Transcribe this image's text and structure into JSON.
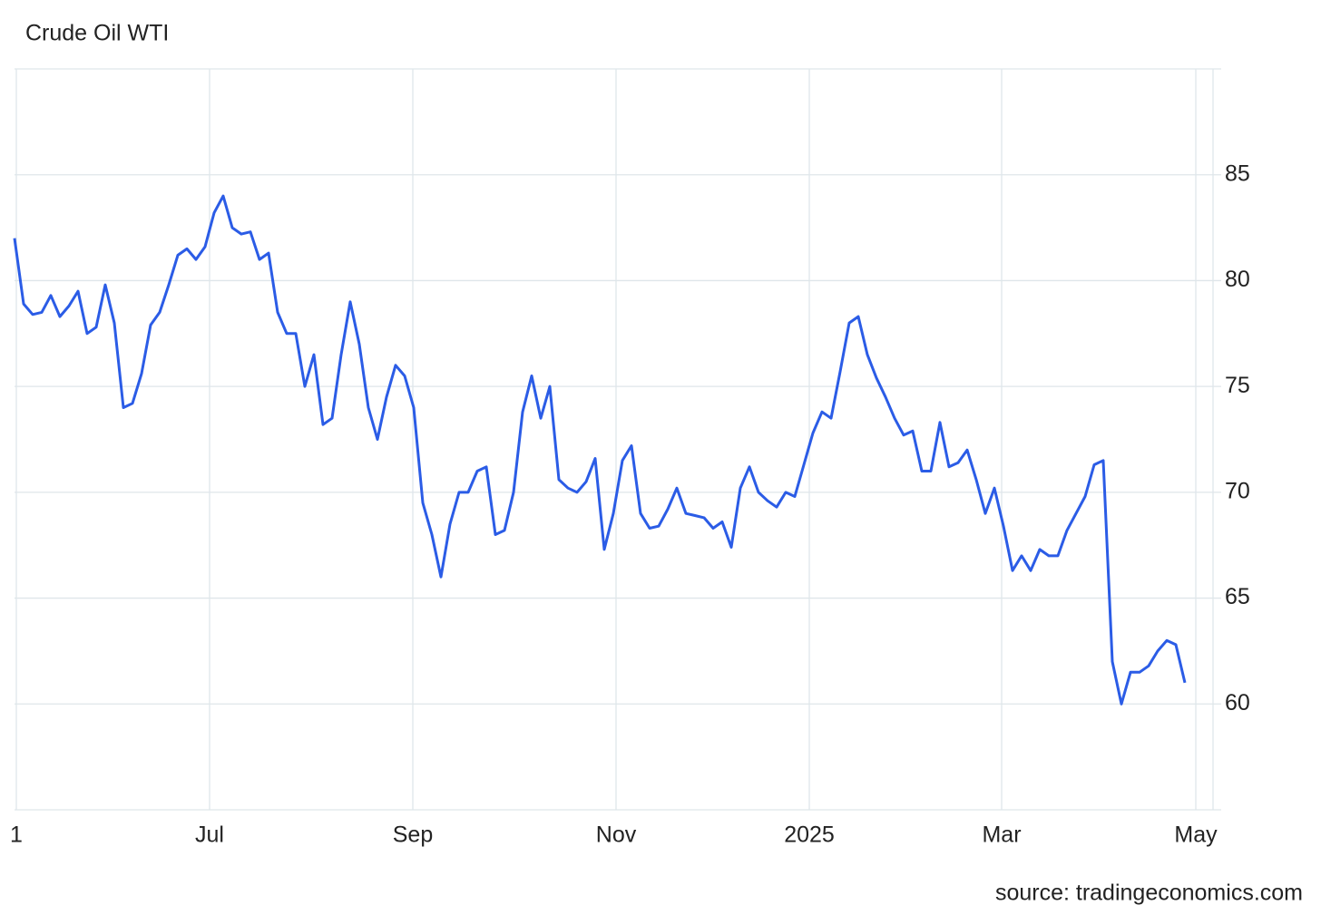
{
  "chart_data": {
    "type": "line",
    "title": "Crude Oil WTI",
    "source": "source: tradingeconomics.com",
    "color": "#2b5ce6",
    "grid": true,
    "xlim": [
      0,
      129
    ],
    "xticks": [
      {
        "value": 0.2,
        "label": "1"
      },
      {
        "value": 21.5,
        "label": "Jul"
      },
      {
        "value": 43.9,
        "label": "Sep"
      },
      {
        "value": 66.3,
        "label": "Nov"
      },
      {
        "value": 87.6,
        "label": "2025"
      },
      {
        "value": 108.8,
        "label": "Mar"
      },
      {
        "value": 130.2,
        "label": "May"
      }
    ],
    "ylim": [
      55,
      90
    ],
    "yticks": [
      60,
      65,
      70,
      75,
      80,
      85
    ],
    "values": [
      82,
      78.9,
      78.4,
      78.5,
      79.3,
      78.3,
      78.8,
      79.5,
      77.5,
      77.8,
      79.8,
      78,
      74,
      74.2,
      75.6,
      77.9,
      78.5,
      79.8,
      81.2,
      81.5,
      81,
      81.6,
      83.2,
      84,
      82.5,
      82.2,
      82.3,
      81,
      81.3,
      78.5,
      77.5,
      77.5,
      75,
      76.5,
      73.2,
      73.5,
      76.5,
      79,
      77,
      74,
      72.5,
      74.5,
      76,
      75.5,
      74,
      69.5,
      68,
      66,
      68.5,
      70,
      70,
      71,
      71.2,
      68,
      68.2,
      70,
      73.8,
      75.5,
      73.5,
      75,
      70.6,
      70.2,
      70,
      70.5,
      71.6,
      67.3,
      69,
      71.5,
      72.2,
      69,
      68.3,
      68.4,
      69.2,
      70.2,
      69,
      68.9,
      68.8,
      68.3,
      68.6,
      67.4,
      70.2,
      71.2,
      70,
      69.6,
      69.3,
      70,
      69.8,
      71.3,
      72.8,
      73.8,
      73.5,
      75.7,
      78,
      78.3,
      76.5,
      75.4,
      74.5,
      73.5,
      72.7,
      72.9,
      71,
      71,
      73.3,
      71.2,
      71.4,
      72,
      70.6,
      69,
      70.2,
      68.4,
      66.3,
      67,
      66.3,
      67.3,
      67,
      67,
      68.2,
      69,
      69.8,
      71.3,
      71.5,
      62,
      60,
      61.5,
      61.5,
      61.8,
      62.5,
      63,
      62.8,
      61
    ]
  }
}
